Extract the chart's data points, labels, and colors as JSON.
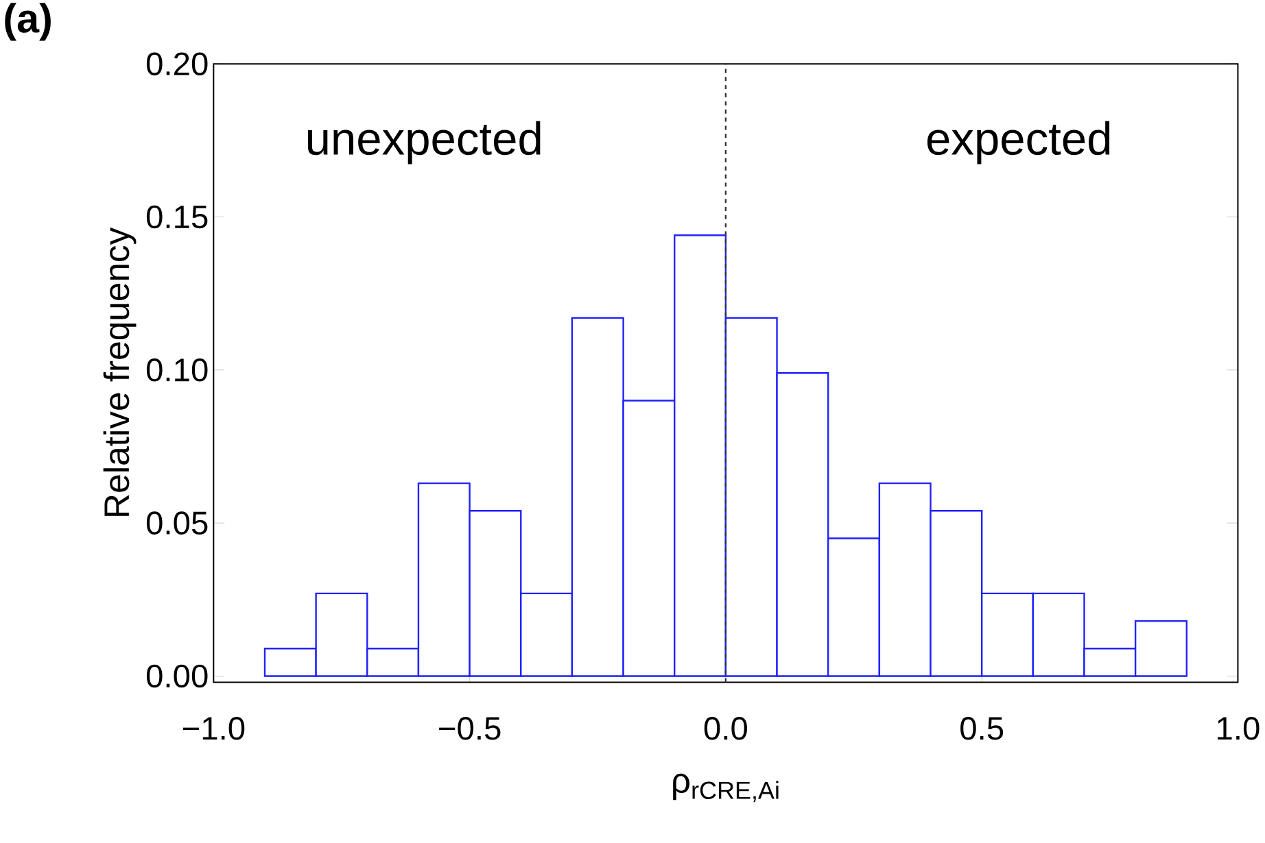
{
  "chart_data": {
    "type": "histogram",
    "bins": [
      -0.9,
      -0.8,
      -0.7,
      -0.6,
      -0.5,
      -0.4,
      -0.3,
      -0.2,
      -0.1,
      0.0,
      0.1,
      0.2,
      0.3,
      0.4,
      0.5,
      0.6,
      0.7,
      0.8,
      0.9
    ],
    "values": [
      0.009,
      0.027,
      0.009,
      0.063,
      0.054,
      0.027,
      0.117,
      0.09,
      0.144,
      0.117,
      0.099,
      0.045,
      0.063,
      0.054,
      0.027,
      0.027,
      0.009,
      0.018
    ],
    "color": "#2020ff",
    "xlabel": "ρ$_{rCRE,Ai}$",
    "ylabel": "Relative frequency",
    "xlim": [
      -1.0,
      1.0
    ],
    "ylim": [
      -0.002,
      0.2
    ],
    "xticks": [
      {
        "value": -1.0,
        "label": "−1.0"
      },
      {
        "value": -0.5,
        "label": "−0.5"
      },
      {
        "value": 0.0,
        "label": "0.0"
      },
      {
        "value": 0.5,
        "label": "0.5"
      },
      {
        "value": 1.0,
        "label": "1.0"
      }
    ],
    "yticks": [
      {
        "value": 0.0,
        "label": "0.00"
      },
      {
        "value": 0.05,
        "label": "0.05"
      },
      {
        "value": 0.1,
        "label": "0.10"
      },
      {
        "value": 0.15,
        "label": "0.15"
      },
      {
        "value": 0.2,
        "label": "0.20"
      }
    ],
    "ref_lines": [
      {
        "axis": "x",
        "value": 0.0,
        "color": "#333333",
        "line_style": "dashed"
      }
    ],
    "annotations": [
      "(a)",
      "unexpected",
      "expected"
    ],
    "grid": false
  }
}
